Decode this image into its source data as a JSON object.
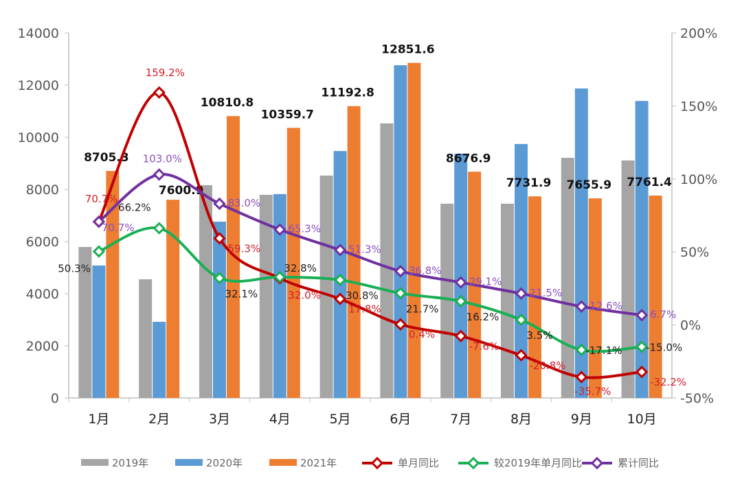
{
  "chart_data": {
    "type": "bar+line",
    "categories": [
      "1月",
      "2月",
      "3月",
      "4月",
      "5月",
      "6月",
      "7月",
      "8月",
      "9月",
      "10月"
    ],
    "y_left": {
      "range": [
        0,
        14000
      ],
      "ticks": [
        "0",
        "2000",
        "4000",
        "6000",
        "8000",
        "10000",
        "12000",
        "14000"
      ]
    },
    "y_right": {
      "range": [
        -50,
        200
      ],
      "ticks": [
        "-50%",
        "0%",
        "50%",
        "100%",
        "150%",
        "200%"
      ]
    },
    "grid": false,
    "legend_placement": "bottom",
    "bar_series": [
      {
        "name": "2019年",
        "color": "#a5a5a5",
        "values": [
          5790,
          4550,
          8160,
          7790,
          8530,
          10530,
          7450,
          7450,
          9210,
          9110
        ],
        "labels": null
      },
      {
        "name": "2020年",
        "color": "#5b9bd5",
        "values": [
          5080,
          2920,
          6760,
          7820,
          9470,
          12760,
          9370,
          9740,
          11870,
          11390
        ],
        "labels": null
      },
      {
        "name": "2021年",
        "color": "#ed7d31",
        "values": [
          8705.3,
          7600.9,
          10810.8,
          10359.7,
          11192.8,
          12851.6,
          8676.9,
          7731.9,
          7655.9,
          7761.4
        ],
        "labels": [
          "8705.3",
          "7600.9",
          "10810.8",
          "10359.7",
          "11192.8",
          "12851.6",
          "8676.9",
          "7731.9",
          "7655.9",
          "7761.4"
        ]
      }
    ],
    "line_series": [
      {
        "name": "单月同比",
        "color": "#c00000",
        "label_color": "#d0202a",
        "values": [
          70.7,
          159.2,
          59.3,
          32.0,
          17.8,
          0.4,
          -7.6,
          -20.8,
          -35.7,
          -32.2
        ],
        "labels": [
          "70.7%",
          "159.2%",
          "59.3%",
          "32.0%",
          "17.8%",
          "0.4%",
          "-7.6%",
          "-20.8%",
          "-35.7%",
          "-32.2%"
        ]
      },
      {
        "name": "较2019年单月同比",
        "color": "#1aaf54",
        "label_color": "#222222",
        "values": [
          50.3,
          66.2,
          32.1,
          32.8,
          30.8,
          21.7,
          16.2,
          3.5,
          -17.1,
          -15.0
        ],
        "labels": [
          "50.3%",
          "66.2%",
          "32.1%",
          "32.8%",
          "30.8%",
          "21.7%",
          "16.2%",
          "3.5%",
          "-17.1%",
          "-15.0%"
        ]
      },
      {
        "name": "累计同比",
        "color": "#7030a0",
        "label_color": "#8a4fc0",
        "values": [
          70.7,
          103.0,
          83.0,
          65.3,
          51.3,
          36.8,
          29.1,
          21.5,
          12.6,
          6.7
        ],
        "labels": [
          "70.7%",
          "103.0%",
          "83.0%",
          "65.3%",
          "51.3%",
          "36.8%",
          "29.1%",
          "21.5%",
          "12.6%",
          "6.7%"
        ]
      }
    ]
  }
}
